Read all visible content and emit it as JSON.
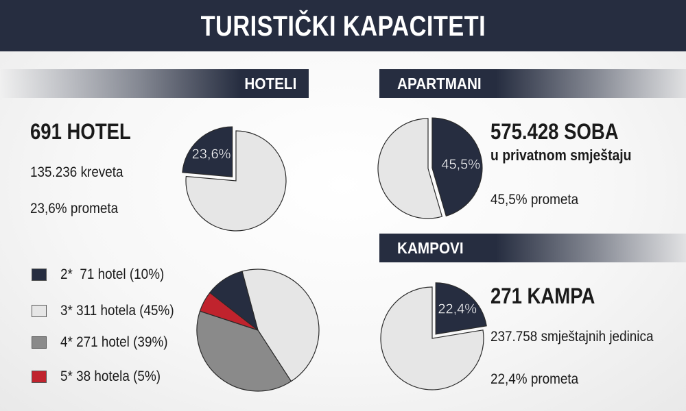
{
  "header": {
    "title": "TURISTIČKI KAPACITETI"
  },
  "sections": {
    "hoteli": {
      "band_label": "HOTELI",
      "headline": "691 HOTEL",
      "line1": "135.236 kreveta",
      "line2": "23,6% prometa"
    },
    "apartmani": {
      "band_label": "APARTMANI",
      "headline": "575.428 SOBA",
      "subheadline": "u privatnom smještaju",
      "line1": "45,5% prometa"
    },
    "kampovi": {
      "band_label": "KAMPOVI",
      "headline": "271 KAMPA",
      "line1": "237.758 smještajnih jedinica",
      "line2": "22,4% prometa"
    }
  },
  "legend": [
    {
      "label": "2*  71 hotel (10%)",
      "color": "#262d40"
    },
    {
      "label": "3* 311 hotela (45%)",
      "color": "#e6e6e6"
    },
    {
      "label": "4* 271 hotel (39%)",
      "color": "#8a8a8a"
    },
    {
      "label": "5* 38 hotela (5%)",
      "color": "#c0232d"
    }
  ],
  "colors": {
    "navy": "#262d40",
    "light": "#e6e6e6",
    "gray": "#8a8a8a",
    "red": "#c0232d"
  },
  "chart_data": [
    {
      "type": "pie",
      "id": "hotel-share",
      "values": [
        23.6,
        76.4
      ],
      "colors": [
        "#262d40",
        "#e6e6e6"
      ],
      "start_angle_deg": -90,
      "direction": "ccw",
      "explode_first": true,
      "label": "23,6%"
    },
    {
      "type": "pie",
      "id": "apartment-share",
      "values": [
        45.5,
        54.5
      ],
      "colors": [
        "#262d40",
        "#e6e6e6"
      ],
      "start_angle_deg": -90,
      "direction": "cw",
      "explode_first": true,
      "label": "45,5%"
    },
    {
      "type": "pie",
      "id": "camp-share",
      "values": [
        22.4,
        77.6
      ],
      "colors": [
        "#262d40",
        "#e6e6e6"
      ],
      "start_angle_deg": -90,
      "direction": "cw",
      "explode_first": true,
      "label": "22,4%"
    },
    {
      "type": "pie",
      "id": "hotel-categories",
      "categories": [
        "2*",
        "3*",
        "4*",
        "5*"
      ],
      "values": [
        71,
        311,
        271,
        38
      ],
      "colors": [
        "#262d40",
        "#e6e6e6",
        "#8a8a8a",
        "#c0232d"
      ],
      "order": [
        1,
        2,
        3,
        0
      ],
      "start_angle_deg": -105,
      "direction": "cw"
    }
  ]
}
